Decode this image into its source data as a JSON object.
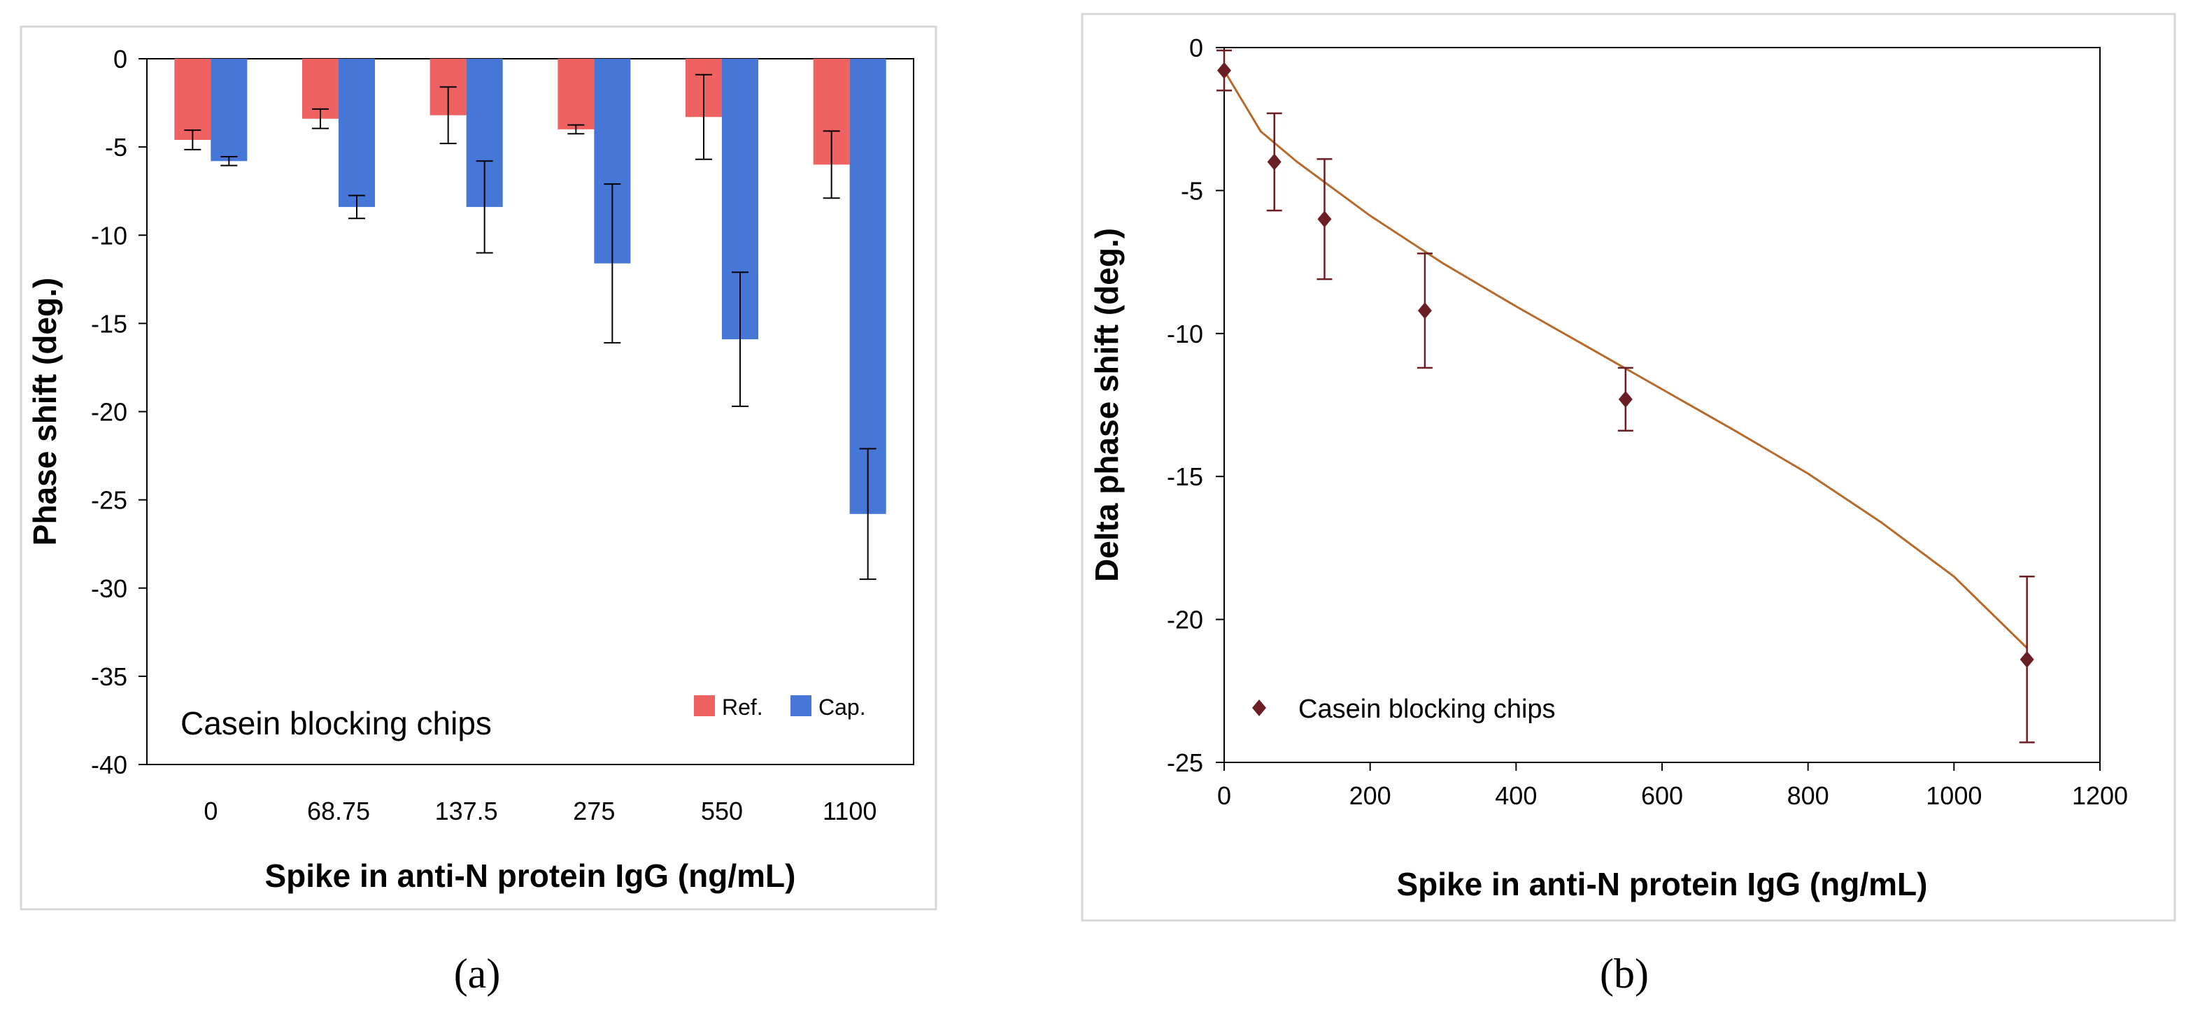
{
  "chart_data": [
    {
      "type": "bar",
      "panel_label": "(a)",
      "categories": [
        "0",
        "68.75",
        "137.5",
        "275",
        "550",
        "1100"
      ],
      "series": [
        {
          "name": "Ref.",
          "color": "#ef6262",
          "values": [
            -4.6,
            -3.4,
            -3.2,
            -4.0,
            -3.3,
            -6.0
          ],
          "errors": [
            0.55,
            0.55,
            1.6,
            0.25,
            2.4,
            1.9
          ]
        },
        {
          "name": "Cap.",
          "color": "#4677d7",
          "values": [
            -5.8,
            -8.4,
            -8.4,
            -11.6,
            -15.9,
            -25.8
          ],
          "errors": [
            0.25,
            0.65,
            2.6,
            4.5,
            3.8,
            3.7
          ]
        }
      ],
      "annotation": "Casein blocking chips",
      "xlabel": "Spike in anti-N protein IgG (ng/mL)",
      "ylabel": "Phase shift (deg.)",
      "ylim": [
        -40,
        0
      ],
      "yticks": [
        "0",
        "-5",
        "-10",
        "-15",
        "-20",
        "-25",
        "-30",
        "-35",
        "-40"
      ],
      "grid": false,
      "legend_position": "bottom-right"
    },
    {
      "type": "scatter",
      "panel_label": "(b)",
      "series": [
        {
          "name": "Casein blocking chips",
          "color": "#6b1f24",
          "x": [
            0,
            68.75,
            137.5,
            275,
            550,
            1100
          ],
          "y": [
            -0.8,
            -4.0,
            -6.0,
            -9.2,
            -12.3,
            -21.4
          ],
          "errors": [
            0.7,
            1.7,
            2.1,
            2.0,
            1.1,
            2.9
          ]
        }
      ],
      "fit_color": "#b76a2c",
      "fit_points": [
        [
          0,
          -0.8
        ],
        [
          50,
          -2.93
        ],
        [
          100,
          -4.0
        ],
        [
          200,
          -5.88
        ],
        [
          300,
          -7.55
        ],
        [
          400,
          -9.05
        ],
        [
          500,
          -10.5
        ],
        [
          600,
          -11.95
        ],
        [
          700,
          -13.4
        ],
        [
          800,
          -14.9
        ],
        [
          900,
          -16.6
        ],
        [
          1000,
          -18.5
        ],
        [
          1100,
          -21.0
        ]
      ],
      "xlabel": "Spike in anti-N protein IgG (ng/mL)",
      "ylabel": "Delta phase shift (deg.)",
      "xlim": [
        0,
        1200
      ],
      "ylim": [
        -25,
        0
      ],
      "xticks": [
        "0",
        "200",
        "400",
        "600",
        "800",
        "1000",
        "1200"
      ],
      "yticks": [
        "0",
        "-5",
        "-10",
        "-15",
        "-20",
        "-25"
      ],
      "grid": false,
      "legend_position": "bottom-left"
    }
  ]
}
